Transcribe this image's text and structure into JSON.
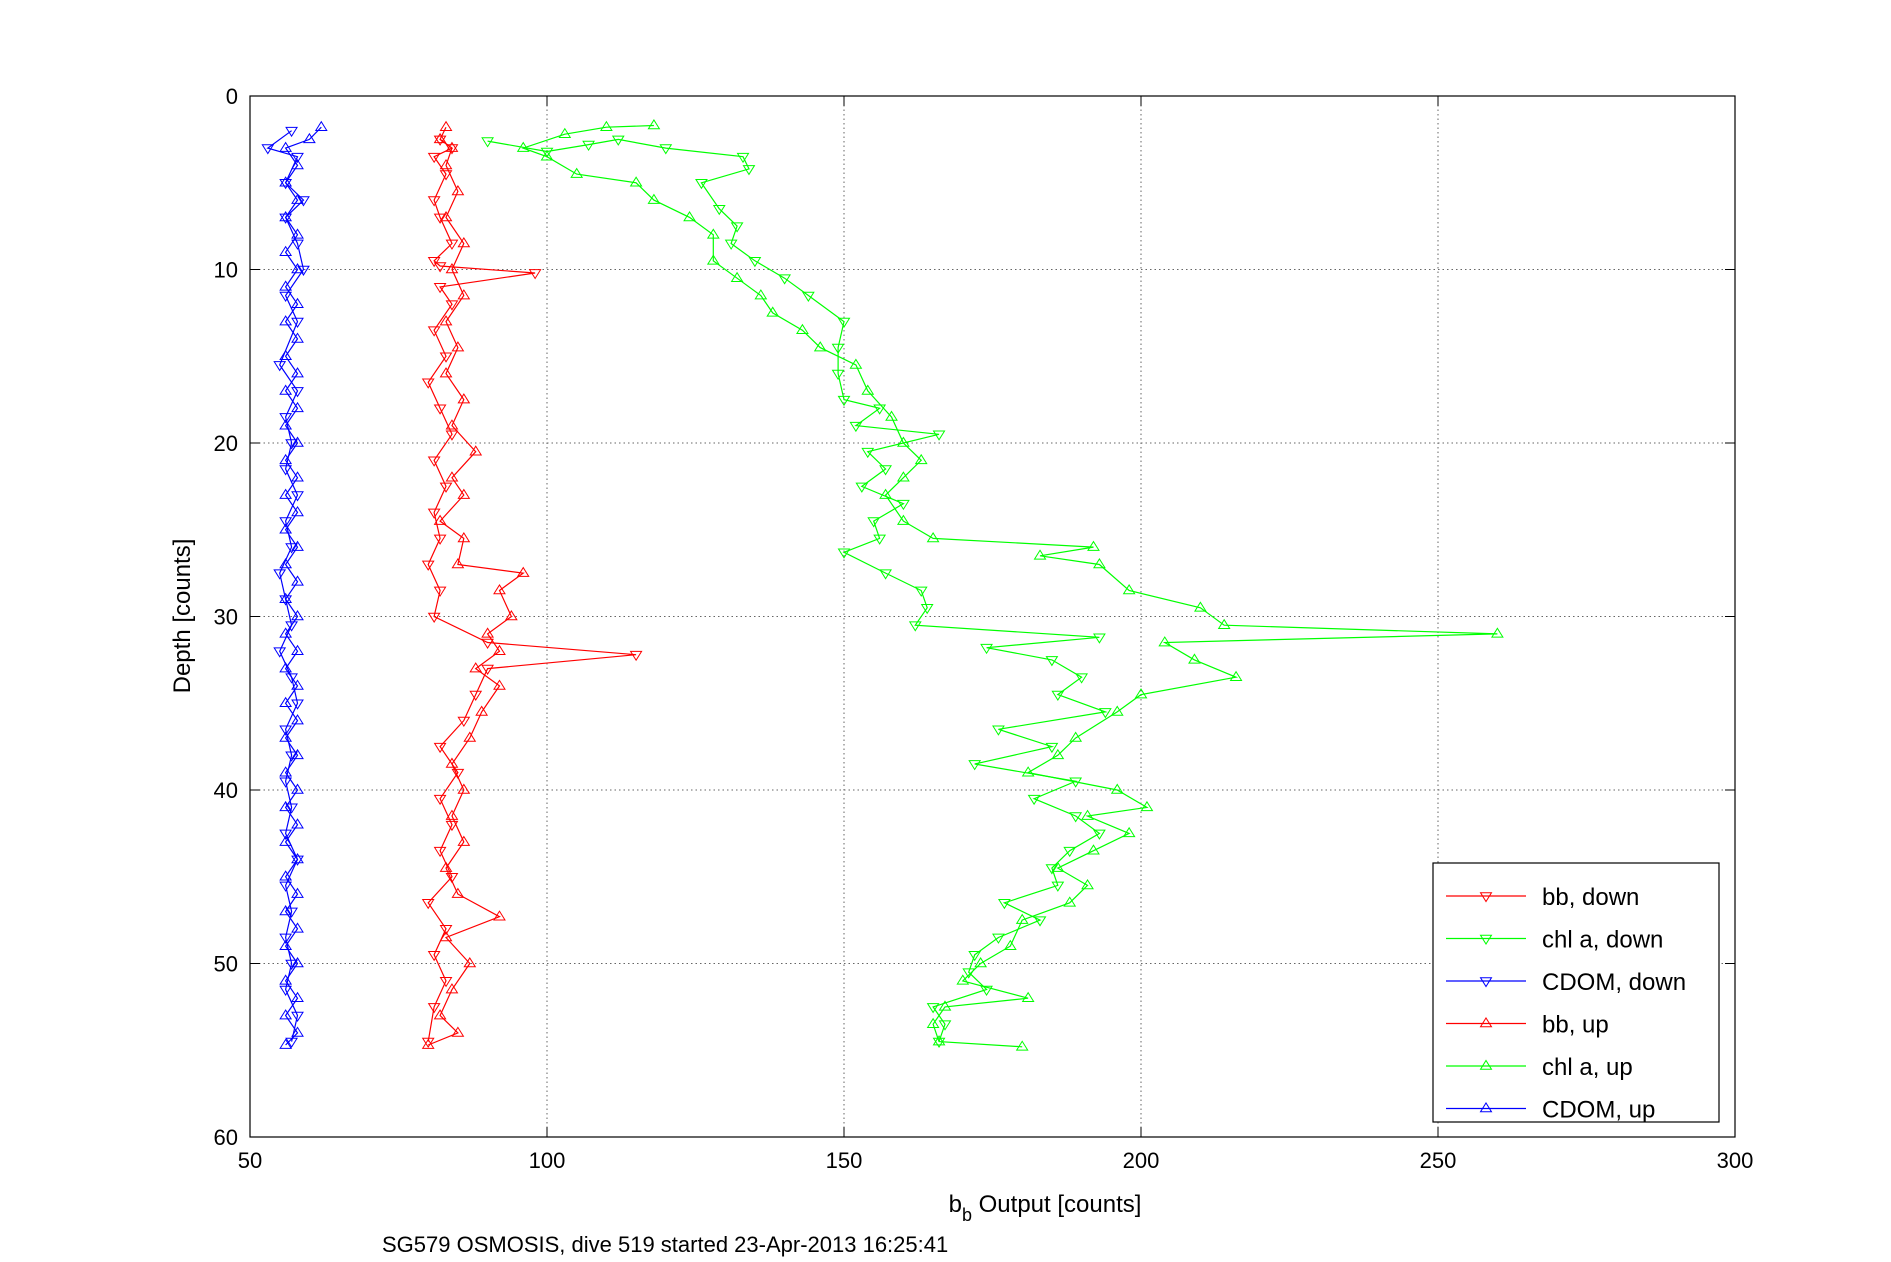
{
  "chart_data": {
    "type": "line",
    "xlabel": "b_b Output [counts]",
    "xlabel_main": "b",
    "xlabel_sub": "b",
    "xlabel_rest": " Output [counts]",
    "ylabel": "Depth [counts]",
    "xlim": [
      50,
      300
    ],
    "ylim": [
      0,
      60
    ],
    "y_reversed": true,
    "grid": true,
    "legend_position": "bottom-right",
    "xticks": [
      50,
      100,
      150,
      200,
      250,
      300
    ],
    "yticks": [
      0,
      10,
      20,
      30,
      40,
      50,
      60
    ],
    "caption": "SG579 OSMOSIS, dive 519 started 23-Apr-2013 16:25:41",
    "series": [
      {
        "name": "bb, down",
        "color": "#ff0000",
        "marker": "triangle-down",
        "points": [
          [
            82,
            2.5
          ],
          [
            84,
            3
          ],
          [
            81,
            3.5
          ],
          [
            83,
            4.5
          ],
          [
            81,
            6
          ],
          [
            82,
            7
          ],
          [
            84,
            8.5
          ],
          [
            81,
            9.5
          ],
          [
            82,
            9.8
          ],
          [
            98,
            10.2
          ],
          [
            82,
            11
          ],
          [
            84,
            12
          ],
          [
            81,
            13.5
          ],
          [
            83,
            15
          ],
          [
            80,
            16.5
          ],
          [
            82,
            18
          ],
          [
            84,
            19.5
          ],
          [
            81,
            21
          ],
          [
            83,
            22.5
          ],
          [
            81,
            24
          ],
          [
            82,
            25.5
          ],
          [
            80,
            27
          ],
          [
            82,
            28.5
          ],
          [
            81,
            30
          ],
          [
            90,
            31.5
          ],
          [
            115,
            32.2
          ],
          [
            90,
            33
          ],
          [
            88,
            34.5
          ],
          [
            86,
            36
          ],
          [
            82,
            37.5
          ],
          [
            85,
            39
          ],
          [
            82,
            40.5
          ],
          [
            84,
            42
          ],
          [
            82,
            43.5
          ],
          [
            84,
            45
          ],
          [
            80,
            46.5
          ],
          [
            83,
            48
          ],
          [
            81,
            49.5
          ],
          [
            83,
            51
          ],
          [
            81,
            52.5
          ],
          [
            80,
            54.5
          ]
        ]
      },
      {
        "name": "chl a, down",
        "color": "#00ff00",
        "marker": "triangle-down",
        "points": [
          [
            90,
            2.6
          ],
          [
            100,
            3.2
          ],
          [
            107,
            2.8
          ],
          [
            112,
            2.5
          ],
          [
            120,
            3
          ],
          [
            133,
            3.5
          ],
          [
            134,
            4.2
          ],
          [
            126,
            5
          ],
          [
            129,
            6.5
          ],
          [
            132,
            7.5
          ],
          [
            131,
            8.5
          ],
          [
            135,
            9.5
          ],
          [
            140,
            10.5
          ],
          [
            144,
            11.5
          ],
          [
            150,
            13
          ],
          [
            149,
            14.5
          ],
          [
            149,
            16
          ],
          [
            150,
            17.5
          ],
          [
            156,
            18
          ],
          [
            152,
            19
          ],
          [
            166,
            19.5
          ],
          [
            154,
            20.5
          ],
          [
            157,
            21.5
          ],
          [
            153,
            22.5
          ],
          [
            160,
            23.5
          ],
          [
            155,
            24.5
          ],
          [
            156,
            25.5
          ],
          [
            150,
            26.3
          ],
          [
            157,
            27.5
          ],
          [
            163,
            28.5
          ],
          [
            164,
            29.5
          ],
          [
            162,
            30.5
          ],
          [
            193,
            31.2
          ],
          [
            174,
            31.8
          ],
          [
            185,
            32.5
          ],
          [
            190,
            33.5
          ],
          [
            186,
            34.5
          ],
          [
            194,
            35.5
          ],
          [
            176,
            36.5
          ],
          [
            185,
            37.5
          ],
          [
            172,
            38.5
          ],
          [
            189,
            39.5
          ],
          [
            182,
            40.5
          ],
          [
            189,
            41.5
          ],
          [
            193,
            42.5
          ],
          [
            188,
            43.5
          ],
          [
            185,
            44.5
          ],
          [
            186,
            45.5
          ],
          [
            177,
            46.5
          ],
          [
            183,
            47.5
          ],
          [
            176,
            48.5
          ],
          [
            172,
            49.5
          ],
          [
            171,
            50.5
          ],
          [
            174,
            51.5
          ],
          [
            165,
            52.5
          ],
          [
            167,
            53.5
          ],
          [
            166,
            54.5
          ]
        ]
      },
      {
        "name": "CDOM, down",
        "color": "#0000ff",
        "marker": "triangle-down",
        "points": [
          [
            57,
            2
          ],
          [
            53,
            3
          ],
          [
            58,
            3.5
          ],
          [
            56,
            5
          ],
          [
            59,
            6
          ],
          [
            56,
            7
          ],
          [
            58,
            8.5
          ],
          [
            59,
            10
          ],
          [
            56,
            11.5
          ],
          [
            58,
            13
          ],
          [
            55,
            15.5
          ],
          [
            58,
            17
          ],
          [
            56,
            18.5
          ],
          [
            57,
            20
          ],
          [
            56,
            21.5
          ],
          [
            58,
            23
          ],
          [
            56,
            24.5
          ],
          [
            57,
            26
          ],
          [
            55,
            27.5
          ],
          [
            56,
            29
          ],
          [
            57,
            30.5
          ],
          [
            55,
            32
          ],
          [
            57,
            33.5
          ],
          [
            58,
            35
          ],
          [
            56,
            36.5
          ],
          [
            57,
            38
          ],
          [
            56,
            39.5
          ],
          [
            57,
            41
          ],
          [
            56,
            42.5
          ],
          [
            58,
            44
          ],
          [
            56,
            45.5
          ],
          [
            57,
            47
          ],
          [
            56,
            48.5
          ],
          [
            57,
            50
          ],
          [
            56,
            51.5
          ],
          [
            58,
            53
          ],
          [
            57,
            54.5
          ]
        ]
      },
      {
        "name": "bb, up",
        "color": "#ff0000",
        "marker": "triangle-up",
        "points": [
          [
            80,
            54.7
          ],
          [
            85,
            54
          ],
          [
            82,
            53
          ],
          [
            84,
            51.5
          ],
          [
            87,
            50
          ],
          [
            83,
            48.5
          ],
          [
            92,
            47.3
          ],
          [
            85,
            46
          ],
          [
            83,
            44.5
          ],
          [
            86,
            43
          ],
          [
            84,
            41.5
          ],
          [
            86,
            40
          ],
          [
            84,
            38.5
          ],
          [
            87,
            37
          ],
          [
            89,
            35.5
          ],
          [
            92,
            34
          ],
          [
            88,
            33
          ],
          [
            92,
            32
          ],
          [
            90,
            31
          ],
          [
            94,
            30
          ],
          [
            92,
            28.5
          ],
          [
            96,
            27.5
          ],
          [
            85,
            27
          ],
          [
            86,
            25.5
          ],
          [
            82,
            24.5
          ],
          [
            86,
            23
          ],
          [
            84,
            22
          ],
          [
            88,
            20.5
          ],
          [
            84,
            19
          ],
          [
            86,
            17.5
          ],
          [
            83,
            16
          ],
          [
            85,
            14.5
          ],
          [
            83,
            13
          ],
          [
            86,
            11.5
          ],
          [
            84,
            10
          ],
          [
            86,
            8.5
          ],
          [
            83,
            7
          ],
          [
            85,
            5.5
          ],
          [
            83,
            4
          ],
          [
            84,
            3
          ],
          [
            82,
            2.5
          ],
          [
            83,
            1.8
          ]
        ]
      },
      {
        "name": "chl a, up",
        "color": "#00ff00",
        "marker": "triangle-up",
        "points": [
          [
            180,
            54.8
          ],
          [
            166,
            54.5
          ],
          [
            165,
            53.5
          ],
          [
            167,
            52.5
          ],
          [
            181,
            52
          ],
          [
            170,
            51
          ],
          [
            173,
            50
          ],
          [
            178,
            49
          ],
          [
            180,
            47.5
          ],
          [
            188,
            46.5
          ],
          [
            191,
            45.5
          ],
          [
            186,
            44.5
          ],
          [
            192,
            43.5
          ],
          [
            198,
            42.5
          ],
          [
            191,
            41.5
          ],
          [
            201,
            41
          ],
          [
            196,
            40
          ],
          [
            181,
            39
          ],
          [
            186,
            38
          ],
          [
            189,
            37
          ],
          [
            196,
            35.5
          ],
          [
            200,
            34.5
          ],
          [
            216,
            33.5
          ],
          [
            209,
            32.5
          ],
          [
            204,
            31.5
          ],
          [
            260,
            31
          ],
          [
            214,
            30.5
          ],
          [
            210,
            29.5
          ],
          [
            198,
            28.5
          ],
          [
            193,
            27
          ],
          [
            183,
            26.5
          ],
          [
            192,
            26
          ],
          [
            165,
            25.5
          ],
          [
            160,
            24.5
          ],
          [
            157,
            23
          ],
          [
            160,
            22
          ],
          [
            163,
            21
          ],
          [
            160,
            20
          ],
          [
            158,
            18.5
          ],
          [
            154,
            17
          ],
          [
            152,
            15.5
          ],
          [
            146,
            14.5
          ],
          [
            143,
            13.5
          ],
          [
            138,
            12.5
          ],
          [
            136,
            11.5
          ],
          [
            132,
            10.5
          ],
          [
            128,
            9.5
          ],
          [
            128,
            8
          ],
          [
            124,
            7
          ],
          [
            118,
            6
          ],
          [
            115,
            5
          ],
          [
            105,
            4.5
          ],
          [
            100,
            3.5
          ],
          [
            96,
            3
          ],
          [
            103,
            2.2
          ],
          [
            110,
            1.8
          ],
          [
            118,
            1.7
          ]
        ]
      },
      {
        "name": "CDOM, up",
        "color": "#0000ff",
        "marker": "triangle-up",
        "points": [
          [
            56,
            54.7
          ],
          [
            58,
            54
          ],
          [
            56,
            53
          ],
          [
            58,
            52
          ],
          [
            56,
            51
          ],
          [
            58,
            50
          ],
          [
            56,
            49
          ],
          [
            58,
            48
          ],
          [
            56,
            47
          ],
          [
            58,
            46
          ],
          [
            56,
            45
          ],
          [
            58,
            44
          ],
          [
            56,
            43
          ],
          [
            58,
            42
          ],
          [
            56,
            41
          ],
          [
            58,
            40
          ],
          [
            56,
            39
          ],
          [
            58,
            38
          ],
          [
            56,
            37
          ],
          [
            58,
            36
          ],
          [
            56,
            35
          ],
          [
            58,
            34
          ],
          [
            56,
            33
          ],
          [
            58,
            32
          ],
          [
            56,
            31
          ],
          [
            58,
            30
          ],
          [
            56,
            29
          ],
          [
            58,
            28
          ],
          [
            56,
            27
          ],
          [
            58,
            26
          ],
          [
            56,
            25
          ],
          [
            58,
            24
          ],
          [
            56,
            23
          ],
          [
            58,
            22
          ],
          [
            56,
            21
          ],
          [
            58,
            20
          ],
          [
            56,
            19
          ],
          [
            58,
            18
          ],
          [
            56,
            17
          ],
          [
            58,
            16
          ],
          [
            56,
            15
          ],
          [
            58,
            14
          ],
          [
            56,
            13
          ],
          [
            58,
            12
          ],
          [
            56,
            11
          ],
          [
            58,
            10
          ],
          [
            56,
            9
          ],
          [
            58,
            8
          ],
          [
            56,
            7
          ],
          [
            58,
            6
          ],
          [
            56,
            5
          ],
          [
            58,
            4
          ],
          [
            56,
            3
          ],
          [
            60,
            2.5
          ],
          [
            62,
            1.8
          ]
        ]
      }
    ]
  }
}
